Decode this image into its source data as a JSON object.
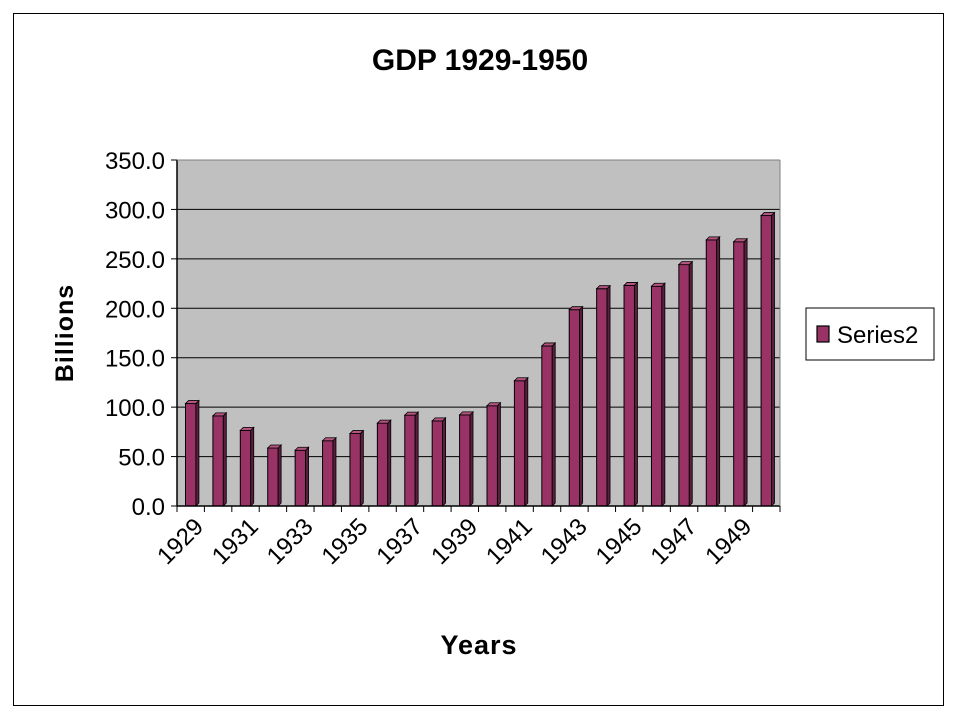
{
  "chart_data": {
    "type": "bar",
    "title": "GDP 1929-1950",
    "xlabel": "Years",
    "ylabel": "Billions",
    "ylim": [
      0,
      350
    ],
    "yticks": [
      "0.0",
      "50.0",
      "100.0",
      "150.0",
      "200.0",
      "250.0",
      "300.0",
      "350.0"
    ],
    "categories": [
      "1929",
      "1930",
      "1931",
      "1932",
      "1933",
      "1934",
      "1935",
      "1936",
      "1937",
      "1938",
      "1939",
      "1940",
      "1941",
      "1942",
      "1943",
      "1944",
      "1945",
      "1946",
      "1947",
      "1948",
      "1949",
      "1950"
    ],
    "xtick_labels": [
      "1929",
      "1931",
      "1933",
      "1935",
      "1937",
      "1939",
      "1941",
      "1943",
      "1945",
      "1947",
      "1949"
    ],
    "series": [
      {
        "name": "Series2",
        "color": "#993366",
        "values": [
          103.6,
          91.2,
          76.5,
          58.7,
          56.4,
          66.0,
          73.3,
          83.8,
          91.9,
          86.1,
          92.2,
          101.4,
          126.7,
          161.9,
          198.6,
          219.8,
          223.1,
          222.3,
          244.2,
          269.2,
          267.3,
          293.8
        ]
      }
    ],
    "grid": true,
    "plot_background": "#c0c0c0",
    "legend": "right"
  }
}
